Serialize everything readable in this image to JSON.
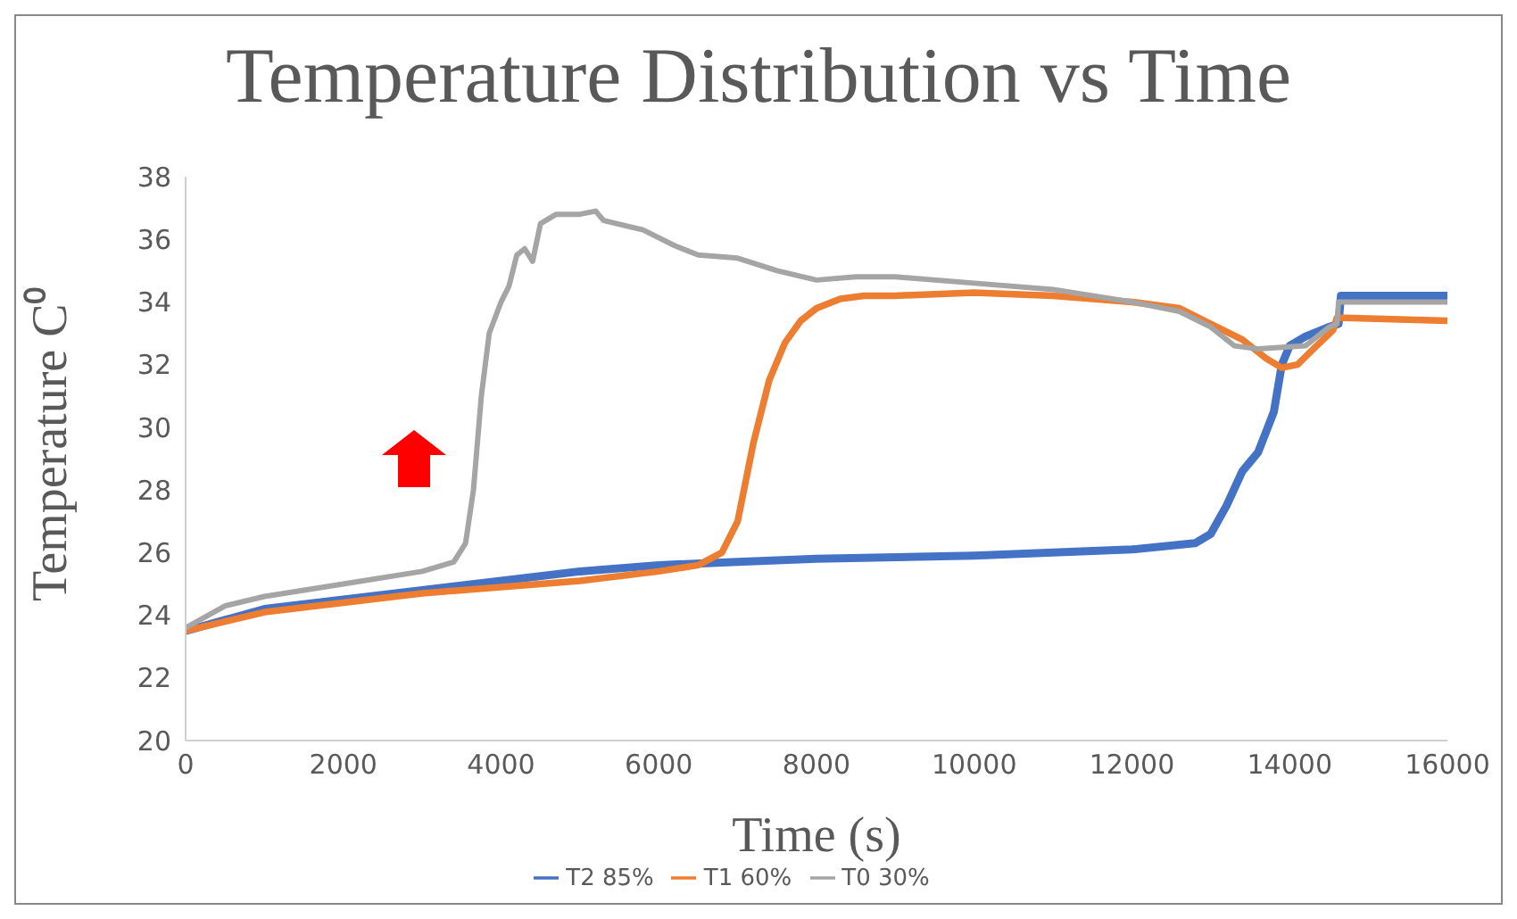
{
  "chart_data": {
    "type": "line",
    "title": "Temperature Distribution vs Time",
    "xlabel": "Time (s)",
    "ylabel": "Temperature  C⁰",
    "xlim": [
      0,
      16000
    ],
    "xticks": [
      0,
      2000,
      4000,
      6000,
      8000,
      10000,
      12000,
      14000,
      16000
    ],
    "ylim": [
      20,
      38
    ],
    "yticks": [
      20,
      22,
      24,
      26,
      28,
      30,
      32,
      34,
      36,
      38
    ],
    "grid": false,
    "legend": "bottom",
    "marker": "none",
    "line_style": "solid",
    "series": [
      {
        "name": "T2 85%",
        "color": "#4472c4",
        "x": [
          0,
          1000,
          2000,
          3000,
          4000,
          5000,
          6000,
          7000,
          8000,
          10000,
          12000,
          12800,
          13000,
          13200,
          13400,
          13500,
          13600,
          13800,
          13900,
          14000,
          14200,
          14500,
          14620,
          14650,
          16000
        ],
        "values": [
          23.5,
          24.2,
          24.5,
          24.8,
          25.1,
          25.4,
          25.6,
          25.7,
          25.8,
          25.9,
          26.1,
          26.3,
          26.6,
          27.5,
          28.6,
          28.9,
          29.2,
          30.5,
          32.0,
          32.6,
          32.9,
          33.2,
          33.3,
          34.2,
          34.2
        ]
      },
      {
        "name": "T1 60%",
        "color": "#ed7d31",
        "x": [
          0,
          1000,
          2000,
          3000,
          4000,
          5000,
          6000,
          6500,
          6800,
          7000,
          7200,
          7400,
          7600,
          7800,
          8000,
          8300,
          8600,
          9000,
          10000,
          11000,
          12000,
          12600,
          13000,
          13400,
          13700,
          13900,
          14100,
          14300,
          14550,
          14600,
          16000
        ],
        "values": [
          23.5,
          24.1,
          24.4,
          24.7,
          24.9,
          25.1,
          25.4,
          25.6,
          26.0,
          27.0,
          29.5,
          31.5,
          32.7,
          33.4,
          33.8,
          34.1,
          34.2,
          34.2,
          34.3,
          34.2,
          34.0,
          33.8,
          33.3,
          32.8,
          32.2,
          31.9,
          32.0,
          32.5,
          33.1,
          33.5,
          33.4
        ]
      },
      {
        "name": "T0 30%",
        "color": "#a5a5a5",
        "x": [
          0,
          500,
          1000,
          2000,
          3000,
          3400,
          3550,
          3650,
          3750,
          3850,
          4000,
          4100,
          4200,
          4300,
          4400,
          4500,
          4700,
          5000,
          5200,
          5300,
          5800,
          6200,
          6500,
          7000,
          7500,
          8000,
          8500,
          9000,
          10000,
          11000,
          12000,
          12600,
          13000,
          13300,
          13600,
          14200,
          14500,
          14600,
          14620,
          16000
        ],
        "values": [
          23.6,
          24.3,
          24.6,
          25.0,
          25.4,
          25.7,
          26.3,
          28.0,
          31.0,
          33.0,
          34.0,
          34.5,
          35.5,
          35.7,
          35.3,
          36.5,
          36.8,
          36.8,
          36.9,
          36.6,
          36.3,
          35.8,
          35.5,
          35.4,
          35.0,
          34.7,
          34.8,
          34.8,
          34.6,
          34.4,
          34.0,
          33.7,
          33.2,
          32.6,
          32.5,
          32.6,
          33.2,
          33.3,
          34.0,
          34.0
        ]
      }
    ]
  }
}
